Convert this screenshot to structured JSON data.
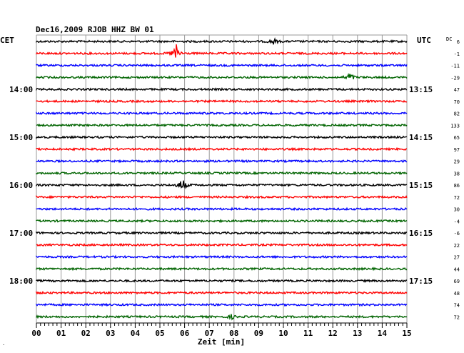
{
  "chart_data": {
    "type": "line",
    "title": "Dec16,2009   RJOB HHZ BW 01",
    "left_unit": "CET",
    "right_unit": "UTC",
    "offset_header": "DC",
    "xlabel": "Zeit [min]",
    "xlim": [
      0,
      15
    ],
    "x_ticks": [
      "00",
      "01",
      "02",
      "03",
      "04",
      "05",
      "06",
      "07",
      "08",
      "09",
      "10",
      "11",
      "12",
      "13",
      "14",
      "15"
    ],
    "left_hour_labels": [
      "14:00",
      "15:00",
      "16:00",
      "17:00",
      "18:00"
    ],
    "right_hour_labels": [
      "13:15",
      "14:15",
      "15:15",
      "16:15",
      "17:15"
    ],
    "trace_colors": [
      "#000000",
      "#ff0000",
      "#0000ff",
      "#006400"
    ],
    "dc_offsets": [
      "6",
      "-1",
      "-11",
      "-29",
      "47",
      "70",
      "82",
      "133",
      "65",
      "97",
      "29",
      "38",
      "86",
      "72",
      "30",
      "-4",
      "-6",
      "22",
      "27",
      "44",
      "69",
      "48",
      "74",
      "72"
    ],
    "events": [
      {
        "trace": 0,
        "minute": 9.6,
        "amplitude": 4
      },
      {
        "trace": 1,
        "minute": 5.65,
        "amplitude": 14
      },
      {
        "trace": 3,
        "minute": 12.7,
        "amplitude": 7
      },
      {
        "trace": 12,
        "minute": 5.9,
        "amplitude": 10
      },
      {
        "trace": 23,
        "minute": 7.9,
        "amplitude": 3
      }
    ],
    "footer_mark": "·"
  }
}
